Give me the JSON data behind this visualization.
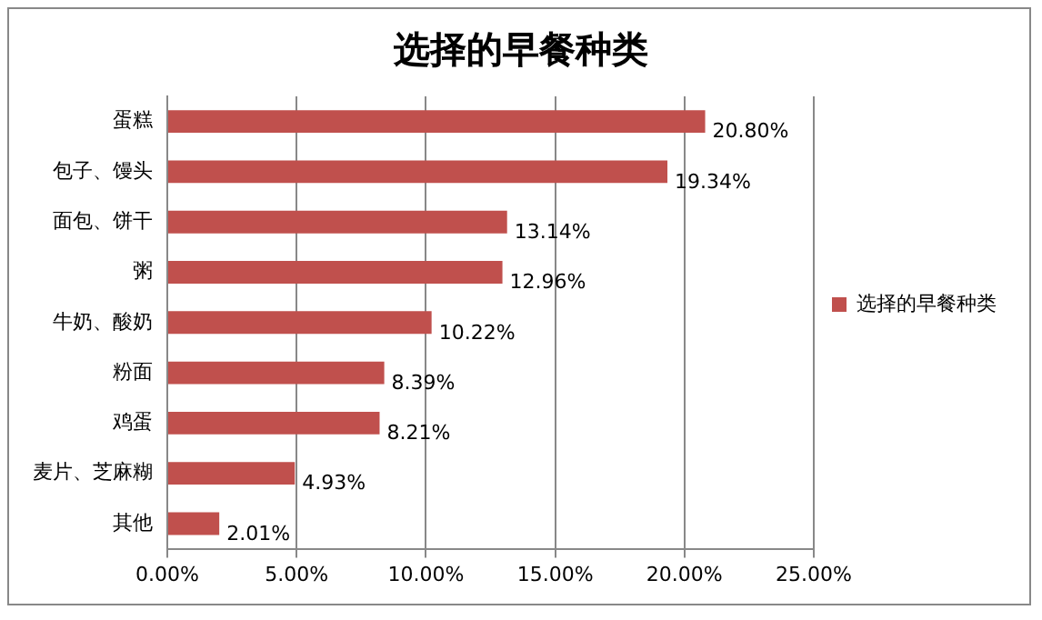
{
  "chart_data": {
    "type": "bar",
    "orientation": "horizontal",
    "title": "选择的早餐种类",
    "categories": [
      "蛋糕",
      "包子、馒头",
      "面包、饼干",
      "粥",
      "牛奶、酸奶",
      "粉面",
      "鸡蛋",
      "麦片、芝麻糊",
      "其他"
    ],
    "series": [
      {
        "name": "选择的早餐种类",
        "color": "#c0504d",
        "values": [
          20.8,
          19.34,
          13.14,
          12.96,
          10.22,
          8.39,
          8.21,
          4.93,
          2.01
        ],
        "value_labels": [
          "20.80%",
          "19.34%",
          "13.14%",
          "12.96%",
          "10.22%",
          "8.39%",
          "8.21%",
          "4.93%",
          "2.01%"
        ]
      }
    ],
    "xlim": [
      0,
      25
    ],
    "xticks": [
      {
        "value": 0,
        "label": "0.00%"
      },
      {
        "value": 5,
        "label": "5.00%"
      },
      {
        "value": 10,
        "label": "10.00%"
      },
      {
        "value": 15,
        "label": "15.00%"
      },
      {
        "value": 20,
        "label": "20.00%"
      },
      {
        "value": 25,
        "label": "25.00%"
      }
    ],
    "grid": "x",
    "legend": "right"
  }
}
